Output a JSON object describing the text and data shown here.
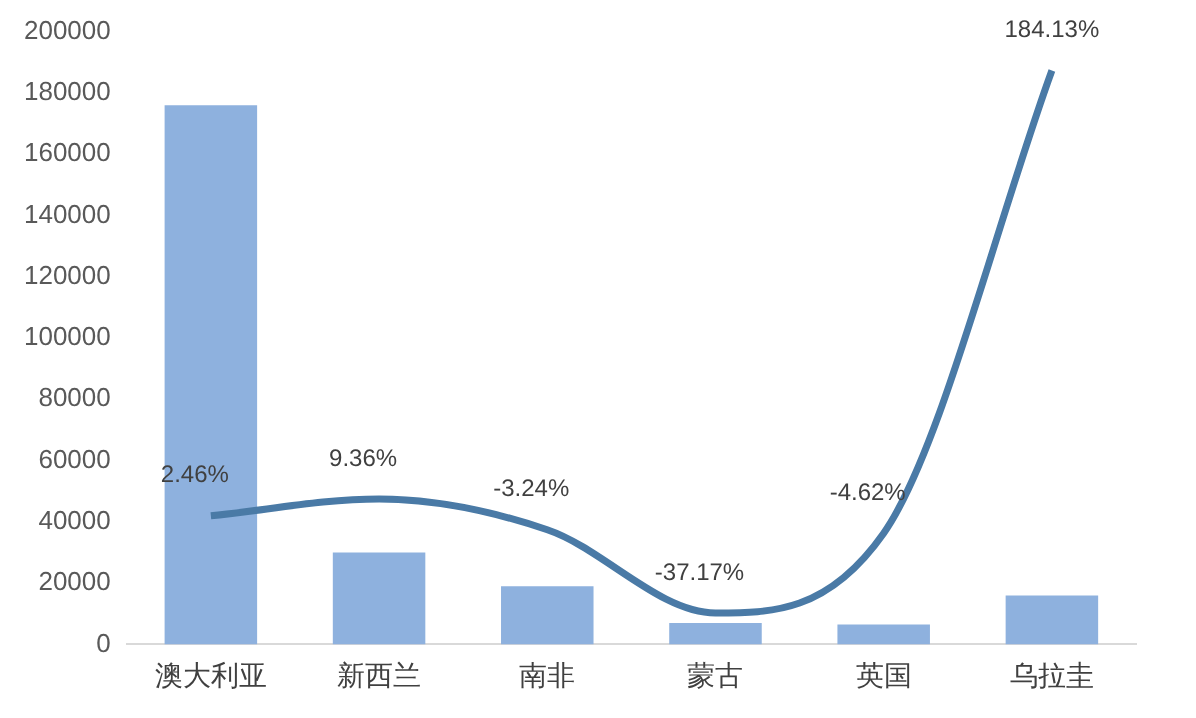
{
  "chart_data": {
    "type": "bar",
    "categories": [
      "澳大利亚",
      "新西兰",
      "南非",
      "蒙古",
      "英国",
      "乌拉圭"
    ],
    "series": [
      {
        "color": "#8eb1de",
        "values": [
          176000,
          30000,
          19000,
          7000,
          6500,
          16000
        ]
      },
      {
        "type": "line",
        "axis": "y2",
        "color": "#4a7aa6",
        "values": [
          2.46,
          9.36,
          -3.24,
          -37.17,
          -4.62,
          184.13
        ],
        "value_labels": [
          "2.46%",
          "9.36%",
          "-3.24%",
          "-37.17%",
          "-4.62%",
          "184.13%"
        ]
      }
    ],
    "ylim": [
      0,
      200000
    ],
    "yticks": [
      0,
      20000,
      40000,
      60000,
      80000,
      100000,
      120000,
      140000,
      160000,
      180000,
      200000
    ],
    "grid": false,
    "legend": false,
    "marker": "none"
  }
}
